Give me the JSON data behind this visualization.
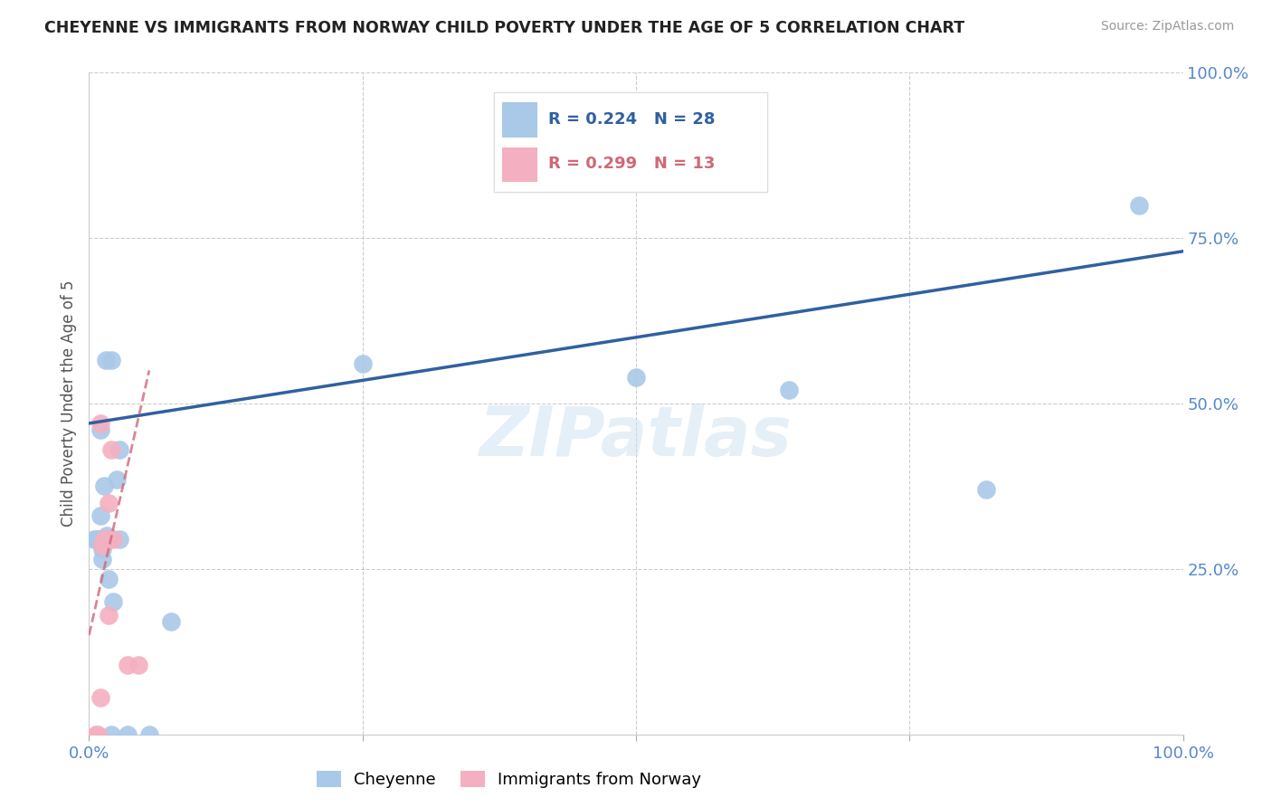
{
  "title": "CHEYENNE VS IMMIGRANTS FROM NORWAY CHILD POVERTY UNDER THE AGE OF 5 CORRELATION CHART",
  "source": "Source: ZipAtlas.com",
  "ylabel": "Child Poverty Under the Age of 5",
  "xlim": [
    0,
    1
  ],
  "ylim": [
    0,
    1
  ],
  "cheyenne_color": "#aac8e8",
  "norway_color": "#f4b0c0",
  "cheyenne_line_color": "#3060a0",
  "norway_line_color": "#d06878",
  "axis_tick_color": "#5588cc",
  "cheyenne_R": 0.224,
  "cheyenne_N": 28,
  "norway_R": 0.299,
  "norway_N": 13,
  "legend_label_cheyenne": "Cheyenne",
  "legend_label_norway": "Immigrants from Norway",
  "watermark": "ZIPatlas",
  "grid_color": "#cccccc",
  "title_color": "#222222",
  "cheyenne_x": [
    0.02,
    0.035,
    0.055,
    0.075,
    0.01,
    0.02,
    0.028,
    0.015,
    0.01,
    0.012,
    0.018,
    0.022,
    0.025,
    0.014,
    0.012,
    0.016,
    0.009,
    0.008,
    0.007,
    0.005,
    0.013,
    0.018,
    0.028,
    0.25,
    0.5,
    0.64,
    0.82,
    0.96
  ],
  "cheyenne_y": [
    0.0,
    0.0,
    0.0,
    0.17,
    0.46,
    0.565,
    0.43,
    0.565,
    0.33,
    0.265,
    0.235,
    0.2,
    0.385,
    0.375,
    0.28,
    0.3,
    0.295,
    0.295,
    0.295,
    0.295,
    0.295,
    0.295,
    0.295,
    0.56,
    0.54,
    0.52,
    0.37,
    0.8
  ],
  "norway_x": [
    0.006,
    0.008,
    0.01,
    0.01,
    0.012,
    0.014,
    0.016,
    0.018,
    0.018,
    0.02,
    0.022,
    0.035,
    0.045
  ],
  "norway_y": [
    0.0,
    0.0,
    0.055,
    0.47,
    0.285,
    0.295,
    0.295,
    0.18,
    0.35,
    0.43,
    0.295,
    0.105,
    0.105
  ],
  "blue_line_x0": 0.0,
  "blue_line_y0": 0.47,
  "blue_line_x1": 1.0,
  "blue_line_y1": 0.73,
  "pink_line_x0": 0.0,
  "pink_line_y0": 0.15,
  "pink_line_x1": 0.055,
  "pink_line_y1": 0.55
}
